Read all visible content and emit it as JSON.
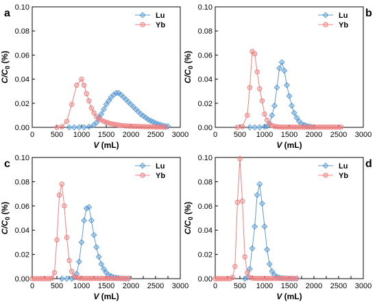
{
  "colors": {
    "lu": "#5b9bd5",
    "yb": "#f08080",
    "axis": "#000000"
  },
  "chart_data": [
    {
      "type": "line",
      "panel_label": "a",
      "xlabel": "V (mL)",
      "ylabel": "C/C0 (%)",
      "xlim": [
        0,
        3000
      ],
      "ylim": [
        0,
        0.1
      ],
      "xticks": [
        0,
        500,
        1000,
        1500,
        2000,
        2500,
        3000
      ],
      "yticks": [
        0.0,
        0.02,
        0.04,
        0.06,
        0.08,
        0.1
      ],
      "legend_position": "top-right",
      "series": [
        {
          "name": "Lu",
          "marker": "diamond",
          "x": [
            750,
            850,
            950,
            1050,
            1150,
            1250,
            1300,
            1350,
            1400,
            1450,
            1500,
            1550,
            1600,
            1650,
            1700,
            1750,
            1800,
            1850,
            1900,
            1950,
            2000,
            2050,
            2100,
            2150,
            2200,
            2250,
            2300,
            2350,
            2400,
            2450,
            2500,
            2550,
            2600,
            2650,
            2700,
            2750
          ],
          "y": [
            0,
            0,
            0,
            0,
            0.0005,
            0.002,
            0.004,
            0.008,
            0.011,
            0.015,
            0.019,
            0.022,
            0.025,
            0.027,
            0.0285,
            0.0285,
            0.027,
            0.025,
            0.023,
            0.021,
            0.019,
            0.017,
            0.015,
            0.013,
            0.011,
            0.0095,
            0.008,
            0.0065,
            0.0055,
            0.0045,
            0.0035,
            0.0028,
            0.002,
            0.0015,
            0.001,
            0.0008
          ]
        },
        {
          "name": "Yb",
          "marker": "circle",
          "x": [
            500,
            600,
            700,
            800,
            900,
            1000,
            1050,
            1100,
            1150,
            1200,
            1250,
            1300,
            1350,
            1400,
            1450,
            1500,
            1550,
            1600,
            1650,
            1700,
            1750,
            1800,
            1850,
            1900,
            1950,
            2000,
            2050,
            2100,
            2150,
            2200,
            2250,
            2300,
            2350,
            2400,
            2450,
            2500,
            2550,
            2600,
            2650,
            2700
          ],
          "y": [
            0,
            0.0005,
            0.005,
            0.019,
            0.035,
            0.04,
            0.035,
            0.028,
            0.022,
            0.016,
            0.012,
            0.009,
            0.007,
            0.006,
            0.005,
            0.0042,
            0.0036,
            0.003,
            0.0026,
            0.0022,
            0.0019,
            0.0016,
            0.0014,
            0.0012,
            0.0011,
            0.001,
            0.0009,
            0.0008,
            0.0007,
            0.0006,
            0.0006,
            0.0005,
            0.0005,
            0.0004,
            0.0004,
            0.0003,
            0.0003,
            0.0002,
            0.0002,
            0.0002
          ]
        }
      ]
    },
    {
      "type": "line",
      "panel_label": "b",
      "xlabel": "V (mL)",
      "ylabel": "C/C0 (%)",
      "xlim": [
        0,
        3000
      ],
      "ylim": [
        0,
        0.1
      ],
      "xticks": [
        0,
        500,
        1000,
        1500,
        2000,
        2500,
        3000
      ],
      "yticks": [
        0.0,
        0.02,
        0.04,
        0.06,
        0.08,
        0.1
      ],
      "legend_position": "top-right",
      "series": [
        {
          "name": "Lu",
          "marker": "diamond",
          "x": [
            700,
            800,
            900,
            1000,
            1050,
            1100,
            1150,
            1200,
            1250,
            1300,
            1350,
            1400,
            1450,
            1500,
            1550,
            1600,
            1650,
            1700,
            1750,
            1800,
            1850,
            1900,
            1950,
            2000
          ],
          "y": [
            0,
            0,
            0,
            0.0005,
            0.001,
            0.003,
            0.01,
            0.018,
            0.033,
            0.049,
            0.054,
            0.047,
            0.035,
            0.026,
            0.018,
            0.012,
            0.008,
            0.005,
            0.003,
            0.002,
            0.0012,
            0.0008,
            0.0004,
            0.0002
          ]
        },
        {
          "name": "Yb",
          "marker": "circle",
          "x": [
            450,
            550,
            650,
            700,
            750,
            800,
            850,
            900,
            950,
            1000,
            1050,
            1100,
            1150,
            1200,
            1250,
            1300,
            1350,
            1400,
            1450,
            1500,
            1550,
            1600,
            1650,
            1700,
            1750,
            1800,
            1850,
            1900,
            1950,
            2000,
            2050,
            2100,
            2150,
            2200,
            2250,
            2300,
            2350,
            2400,
            2450,
            2500,
            2550
          ],
          "y": [
            0,
            0.0005,
            0.01,
            0.033,
            0.063,
            0.061,
            0.046,
            0.032,
            0.022,
            0.011,
            0.006,
            0.003,
            0.0015,
            0.0008,
            0.0005,
            0.0003,
            0.0002,
            0.0002,
            0.0002,
            0.0002,
            0.0002,
            0.0002,
            0.0002,
            0.0002,
            0.0002,
            0.0002,
            0.0002,
            0.0002,
            0.0002,
            0.0002,
            0.0002,
            0.0002,
            0.0002,
            0.0002,
            0.0002,
            0.0002,
            0.0002,
            0.0002,
            0.0002,
            0.0002,
            0.0002
          ]
        }
      ]
    },
    {
      "type": "line",
      "panel_label": "c",
      "xlabel": "V (mL)",
      "ylabel": "C/C0 (%)",
      "xlim": [
        0,
        3000
      ],
      "ylim": [
        0,
        0.1
      ],
      "xticks": [
        0,
        250,
        500,
        750,
        1000,
        1250,
        1500,
        1750,
        2000,
        2250,
        2500,
        2750,
        3000
      ],
      "yticks": [
        0.0,
        0.02,
        0.04,
        0.06,
        0.08,
        0.1
      ],
      "legend_position": "top-right",
      "series": [
        {
          "name": "Lu",
          "marker": "diamond",
          "x": [
            600,
            700,
            800,
            850,
            900,
            950,
            1000,
            1050,
            1100,
            1150,
            1200,
            1250,
            1300,
            1350,
            1400,
            1450,
            1500,
            1550,
            1600,
            1650,
            1700,
            1750,
            1800,
            1850,
            1900,
            1950
          ],
          "y": [
            0,
            0,
            0,
            0.001,
            0.004,
            0.014,
            0.03,
            0.048,
            0.058,
            0.059,
            0.048,
            0.036,
            0.026,
            0.018,
            0.012,
            0.008,
            0.005,
            0.003,
            0.002,
            0.0012,
            0.0008,
            0.0005,
            0.0003,
            0.0002,
            0.0001,
            0.0001
          ]
        },
        {
          "name": "Yb",
          "marker": "circle",
          "x": [
            0,
            50,
            100,
            150,
            200,
            250,
            300,
            350,
            400,
            450,
            500,
            550,
            600,
            650,
            700,
            750,
            800,
            850,
            900,
            950,
            1000,
            1050,
            1100,
            1150,
            1200,
            1250,
            1300,
            1350,
            1400,
            1450,
            1500,
            1550,
            1600,
            1650,
            1700,
            1750,
            1800,
            1850,
            1900,
            1950
          ],
          "y": [
            0,
            0,
            0,
            0,
            0,
            0,
            0,
            0,
            0.0005,
            0.005,
            0.032,
            0.069,
            0.078,
            0.06,
            0.034,
            0.015,
            0.006,
            0.002,
            0.001,
            0.0005,
            0.0003,
            0.0002,
            0.0002,
            0.0002,
            0.0002,
            0.0002,
            0.0002,
            0.0002,
            0.0002,
            0.0002,
            0.0002,
            0.0002,
            0.0002,
            0.0002,
            0.0002,
            0.0002,
            0.0002,
            0.0002,
            0.0002,
            0.0002
          ]
        }
      ]
    },
    {
      "type": "line",
      "panel_label": "d",
      "xlabel": "V (mL)",
      "ylabel": "C/C0 (%)",
      "xlim": [
        0,
        3000
      ],
      "ylim": [
        0,
        0.1
      ],
      "xticks": [
        0,
        250,
        500,
        750,
        1000,
        1250,
        1500,
        1750,
        2000,
        2250,
        2500,
        2750,
        3000
      ],
      "yticks": [
        0.0,
        0.02,
        0.04,
        0.06,
        0.08,
        0.1
      ],
      "legend_position": "top-right",
      "series": [
        {
          "name": "Lu",
          "marker": "diamond",
          "x": [
            600,
            650,
            700,
            750,
            800,
            850,
            900,
            950,
            1000,
            1050,
            1100,
            1150,
            1200,
            1250,
            1300,
            1350,
            1400,
            1450,
            1500,
            1550,
            1600,
            1650
          ],
          "y": [
            0,
            0.001,
            0.008,
            0.025,
            0.043,
            0.069,
            0.078,
            0.062,
            0.043,
            0.024,
            0.012,
            0.006,
            0.003,
            0.0015,
            0.0008,
            0.0005,
            0.0003,
            0.0002,
            0.0001,
            0.0001,
            0.0001,
            0.0001
          ]
        },
        {
          "name": "Yb",
          "marker": "circle",
          "x": [
            0,
            50,
            100,
            150,
            200,
            250,
            300,
            350,
            400,
            450,
            500,
            550,
            600,
            650,
            700,
            750,
            800,
            850,
            900,
            950,
            1000,
            1050,
            1100,
            1150,
            1200,
            1250,
            1300,
            1350,
            1400,
            1450,
            1500,
            1550,
            1600,
            1650
          ],
          "y": [
            0,
            0,
            0,
            0,
            0,
            0,
            0,
            0.001,
            0.01,
            0.063,
            0.099,
            0.064,
            0.018,
            0.005,
            0.001,
            0.0005,
            0.0003,
            0.0002,
            0.0002,
            0.0002,
            0.0002,
            0.0002,
            0.0002,
            0.0002,
            0.0002,
            0.0002,
            0.0002,
            0.0002,
            0.0002,
            0.0002,
            0.0002,
            0.0002,
            0.0002,
            0.0002
          ]
        }
      ]
    }
  ]
}
